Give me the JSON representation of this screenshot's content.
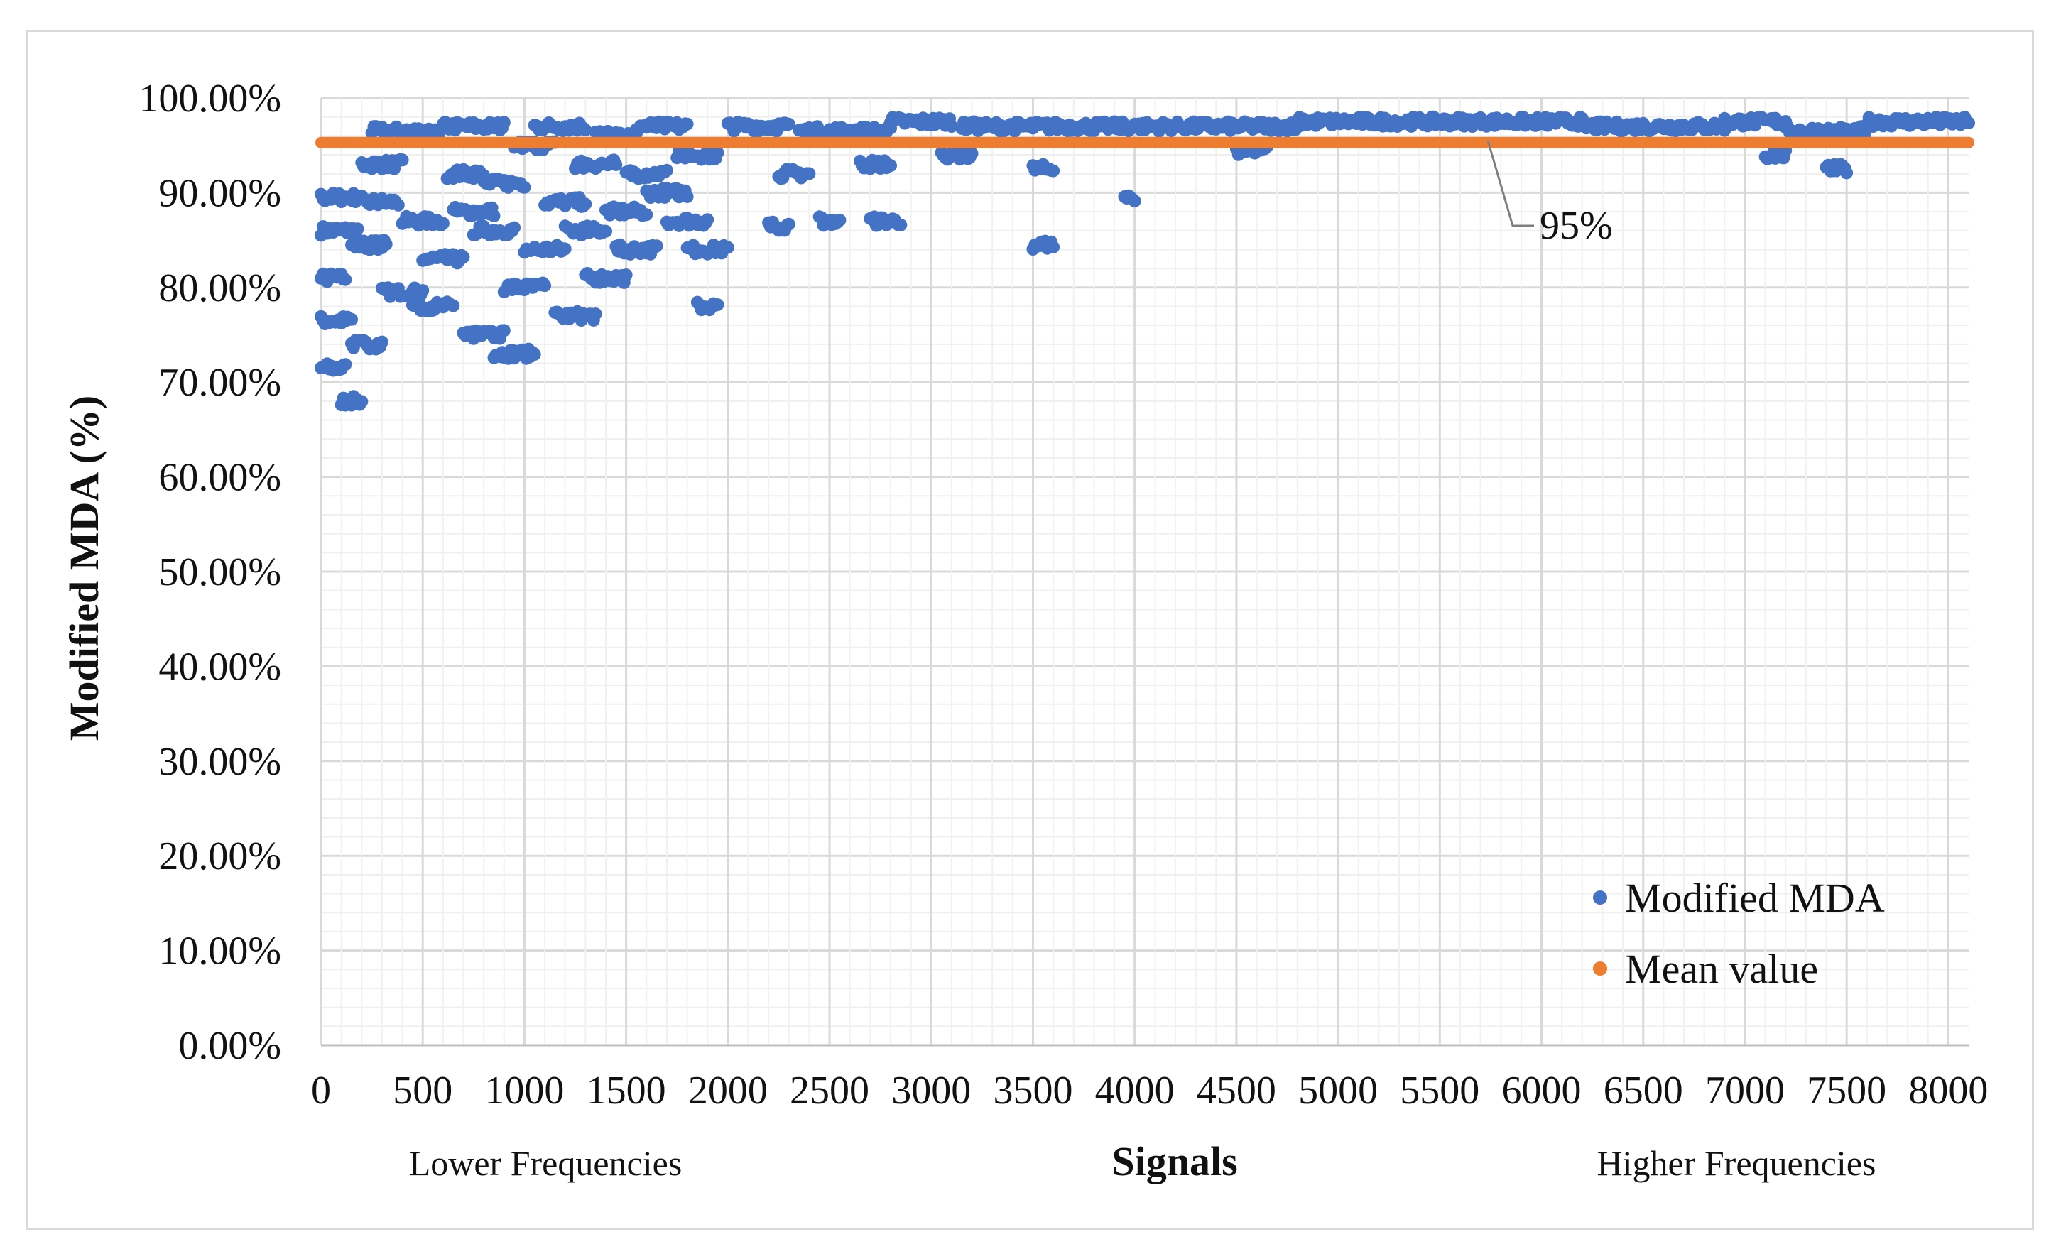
{
  "chart_data": {
    "type": "scatter",
    "ylabel": "Modified  MDA (%)",
    "xlabel": "Signals",
    "x_sublabels": {
      "left": "Lower Frequencies",
      "right": "Higher Frequencies"
    },
    "xlim": [
      0,
      8100
    ],
    "ylim": [
      0,
      100
    ],
    "x_ticks": [
      "0",
      "500",
      "1000",
      "1500",
      "2000",
      "2500",
      "3000",
      "3500",
      "4000",
      "4500",
      "5000",
      "5500",
      "6000",
      "6500",
      "7000",
      "7500",
      "8000"
    ],
    "y_ticks": [
      "0.00%",
      "10.00%",
      "20.00%",
      "30.00%",
      "40.00%",
      "50.00%",
      "60.00%",
      "70.00%",
      "80.00%",
      "90.00%",
      "100.00%"
    ],
    "grid": true,
    "legend_position": "bottom-right",
    "annotation": "95%",
    "colors": {
      "modified_mda": "#4472c4",
      "mean": "#ed7d31"
    },
    "series": [
      {
        "name": "Modified MDA",
        "segments": [
          [
            0,
            180,
            86
          ],
          [
            0,
            120,
            81
          ],
          [
            0,
            200,
            89.5
          ],
          [
            0,
            150,
            76.5
          ],
          [
            0,
            120,
            71.5
          ],
          [
            100,
            200,
            68
          ],
          [
            150,
            300,
            74
          ],
          [
            150,
            320,
            84.5
          ],
          [
            200,
            400,
            93
          ],
          [
            220,
            380,
            89
          ],
          [
            250,
            600,
            96.5
          ],
          [
            300,
            500,
            79.5
          ],
          [
            400,
            600,
            87
          ],
          [
            450,
            650,
            78
          ],
          [
            500,
            700,
            83
          ],
          [
            600,
            900,
            97
          ],
          [
            620,
            800,
            92
          ],
          [
            650,
            850,
            88
          ],
          [
            700,
            900,
            75
          ],
          [
            750,
            950,
            86
          ],
          [
            800,
            1000,
            91
          ],
          [
            850,
            1050,
            73
          ],
          [
            900,
            1100,
            80
          ],
          [
            950,
            1150,
            95
          ],
          [
            1000,
            1200,
            84
          ],
          [
            1050,
            1300,
            97
          ],
          [
            1100,
            1300,
            89
          ],
          [
            1150,
            1350,
            77
          ],
          [
            1200,
            1400,
            86
          ],
          [
            1250,
            1450,
            93
          ],
          [
            1300,
            1500,
            81
          ],
          [
            1350,
            1550,
            96
          ],
          [
            1400,
            1600,
            88
          ],
          [
            1450,
            1650,
            84
          ],
          [
            1500,
            1700,
            92
          ],
          [
            1550,
            1800,
            97
          ],
          [
            1600,
            1800,
            90
          ],
          [
            1700,
            1900,
            87
          ],
          [
            1750,
            1950,
            94
          ],
          [
            1800,
            2000,
            84
          ],
          [
            1850,
            1950,
            78
          ],
          [
            2000,
            2300,
            97
          ],
          [
            2200,
            2300,
            86.5
          ],
          [
            2250,
            2400,
            92
          ],
          [
            2350,
            2800,
            96.5
          ],
          [
            2450,
            2550,
            87
          ],
          [
            2650,
            2800,
            93
          ],
          [
            2700,
            2850,
            87
          ],
          [
            2800,
            3100,
            97.5
          ],
          [
            3050,
            3200,
            94
          ],
          [
            3150,
            4000,
            97
          ],
          [
            3500,
            3600,
            92.5
          ],
          [
            3500,
            3600,
            84.5
          ],
          [
            3950,
            4000,
            89.5
          ],
          [
            4000,
            4800,
            97
          ],
          [
            4500,
            4650,
            94.5
          ],
          [
            4800,
            5500,
            97.5
          ],
          [
            5500,
            6200,
            97.5
          ],
          [
            6200,
            6900,
            97
          ],
          [
            6900,
            7200,
            97.5
          ],
          [
            7100,
            7200,
            94
          ],
          [
            7200,
            7600,
            96.5
          ],
          [
            7400,
            7500,
            92.5
          ],
          [
            7600,
            8100,
            97.5
          ]
        ]
      },
      {
        "name": "Mean value",
        "value": 95.3
      }
    ]
  }
}
